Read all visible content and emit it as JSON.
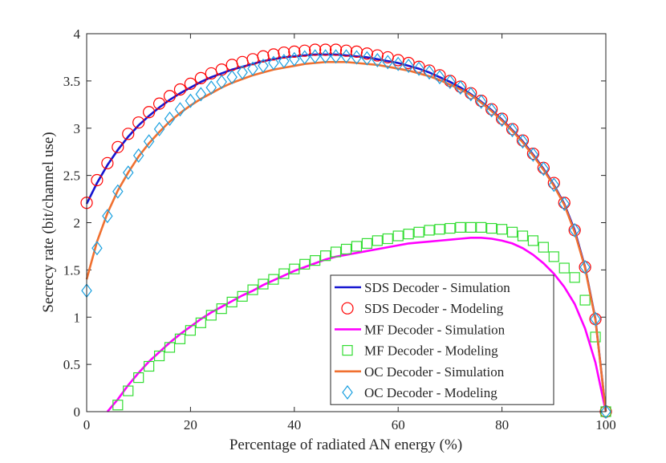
{
  "chart_data": {
    "type": "line",
    "xlabel": "Percentage of radiated AN energy (%)",
    "ylabel": "Secrecy rate (bit/channel use)",
    "xlim": [
      0,
      100
    ],
    "ylim": [
      0,
      4
    ],
    "xticks": [
      0,
      20,
      40,
      60,
      80,
      100
    ],
    "yticks": [
      0,
      0.5,
      1,
      1.5,
      2,
      2.5,
      3,
      3.5,
      4
    ],
    "legend": "lower-right",
    "grid": false,
    "x": [
      0,
      2,
      4,
      6,
      8,
      10,
      12,
      14,
      16,
      18,
      20,
      22,
      24,
      26,
      28,
      30,
      32,
      34,
      36,
      38,
      40,
      42,
      44,
      46,
      48,
      50,
      52,
      54,
      56,
      58,
      60,
      62,
      64,
      66,
      68,
      70,
      72,
      74,
      76,
      78,
      80,
      82,
      84,
      86,
      88,
      90,
      92,
      94,
      96,
      98,
      100
    ],
    "series": [
      {
        "name": "SDS Decoder - Simulation",
        "color": "#1515d0",
        "marker": "none",
        "values": [
          2.2,
          2.42,
          2.61,
          2.77,
          2.91,
          3.03,
          3.13,
          3.22,
          3.3,
          3.37,
          3.43,
          3.49,
          3.54,
          3.58,
          3.62,
          3.65,
          3.68,
          3.71,
          3.73,
          3.75,
          3.76,
          3.77,
          3.78,
          3.78,
          3.78,
          3.77,
          3.76,
          3.75,
          3.73,
          3.71,
          3.69,
          3.66,
          3.63,
          3.59,
          3.54,
          3.49,
          3.43,
          3.36,
          3.28,
          3.19,
          3.09,
          2.98,
          2.86,
          2.72,
          2.57,
          2.4,
          2.2,
          1.92,
          1.53,
          0.98,
          0
        ]
      },
      {
        "name": "SDS Decoder - Modeling",
        "color": "#ff0000",
        "marker": "circle",
        "values": [
          2.21,
          2.45,
          2.63,
          2.8,
          2.94,
          3.06,
          3.17,
          3.26,
          3.34,
          3.41,
          3.47,
          3.53,
          3.58,
          3.62,
          3.67,
          3.7,
          3.73,
          3.76,
          3.78,
          3.8,
          3.81,
          3.82,
          3.83,
          3.83,
          3.83,
          3.82,
          3.81,
          3.79,
          3.77,
          3.75,
          3.72,
          3.69,
          3.65,
          3.61,
          3.56,
          3.5,
          3.44,
          3.37,
          3.29,
          3.2,
          3.1,
          2.99,
          2.87,
          2.73,
          2.58,
          2.42,
          2.21,
          1.92,
          1.53,
          0.98,
          0
        ]
      },
      {
        "name": "MF Decoder - Simulation",
        "color": "#ff00ff",
        "marker": "none",
        "values": [
          null,
          null,
          0,
          0.13,
          0.28,
          0.41,
          0.53,
          0.63,
          0.73,
          0.82,
          0.9,
          0.98,
          1.05,
          1.11,
          1.17,
          1.23,
          1.28,
          1.34,
          1.39,
          1.44,
          1.49,
          1.53,
          1.57,
          1.61,
          1.64,
          1.66,
          1.68,
          1.7,
          1.72,
          1.74,
          1.76,
          1.78,
          1.79,
          1.8,
          1.81,
          1.82,
          1.83,
          1.84,
          1.84,
          1.83,
          1.81,
          1.78,
          1.73,
          1.66,
          1.57,
          1.46,
          1.32,
          1.14,
          0.88,
          0.52,
          0
        ]
      },
      {
        "name": "MF Decoder - Modeling",
        "color": "#33dd33",
        "marker": "square",
        "values": [
          null,
          null,
          null,
          0.07,
          0.22,
          0.36,
          0.48,
          0.59,
          0.68,
          0.77,
          0.86,
          0.94,
          1.02,
          1.09,
          1.16,
          1.22,
          1.29,
          1.35,
          1.4,
          1.46,
          1.51,
          1.56,
          1.6,
          1.65,
          1.69,
          1.72,
          1.75,
          1.78,
          1.81,
          1.83,
          1.86,
          1.88,
          1.9,
          1.92,
          1.93,
          1.94,
          1.95,
          1.95,
          1.95,
          1.94,
          1.93,
          1.9,
          1.86,
          1.81,
          1.74,
          1.64,
          1.52,
          1.42,
          1.18,
          0.79,
          0
        ]
      },
      {
        "name": "OC Decoder - Simulation",
        "color": "#f07030",
        "marker": "none",
        "values": [
          1.4,
          1.8,
          2.1,
          2.34,
          2.53,
          2.7,
          2.84,
          2.96,
          3.07,
          3.16,
          3.24,
          3.31,
          3.37,
          3.43,
          3.48,
          3.52,
          3.56,
          3.59,
          3.62,
          3.64,
          3.66,
          3.68,
          3.69,
          3.7,
          3.7,
          3.7,
          3.69,
          3.68,
          3.67,
          3.65,
          3.63,
          3.61,
          3.58,
          3.55,
          3.51,
          3.46,
          3.41,
          3.35,
          3.27,
          3.18,
          3.08,
          2.97,
          2.85,
          2.71,
          2.56,
          2.39,
          2.19,
          1.9,
          1.52,
          0.97,
          0
        ]
      },
      {
        "name": "OC Decoder - Modeling",
        "color": "#1aa0e0",
        "marker": "diamond",
        "values": [
          1.28,
          1.73,
          2.07,
          2.33,
          2.53,
          2.71,
          2.86,
          2.99,
          3.1,
          3.2,
          3.29,
          3.36,
          3.43,
          3.49,
          3.54,
          3.59,
          3.63,
          3.66,
          3.69,
          3.71,
          3.73,
          3.75,
          3.76,
          3.76,
          3.76,
          3.76,
          3.75,
          3.74,
          3.72,
          3.7,
          3.68,
          3.66,
          3.63,
          3.59,
          3.54,
          3.49,
          3.43,
          3.36,
          3.28,
          3.19,
          3.09,
          2.98,
          2.86,
          2.72,
          2.57,
          2.4,
          2.2,
          1.92,
          1.53,
          0.98,
          0
        ]
      }
    ]
  }
}
